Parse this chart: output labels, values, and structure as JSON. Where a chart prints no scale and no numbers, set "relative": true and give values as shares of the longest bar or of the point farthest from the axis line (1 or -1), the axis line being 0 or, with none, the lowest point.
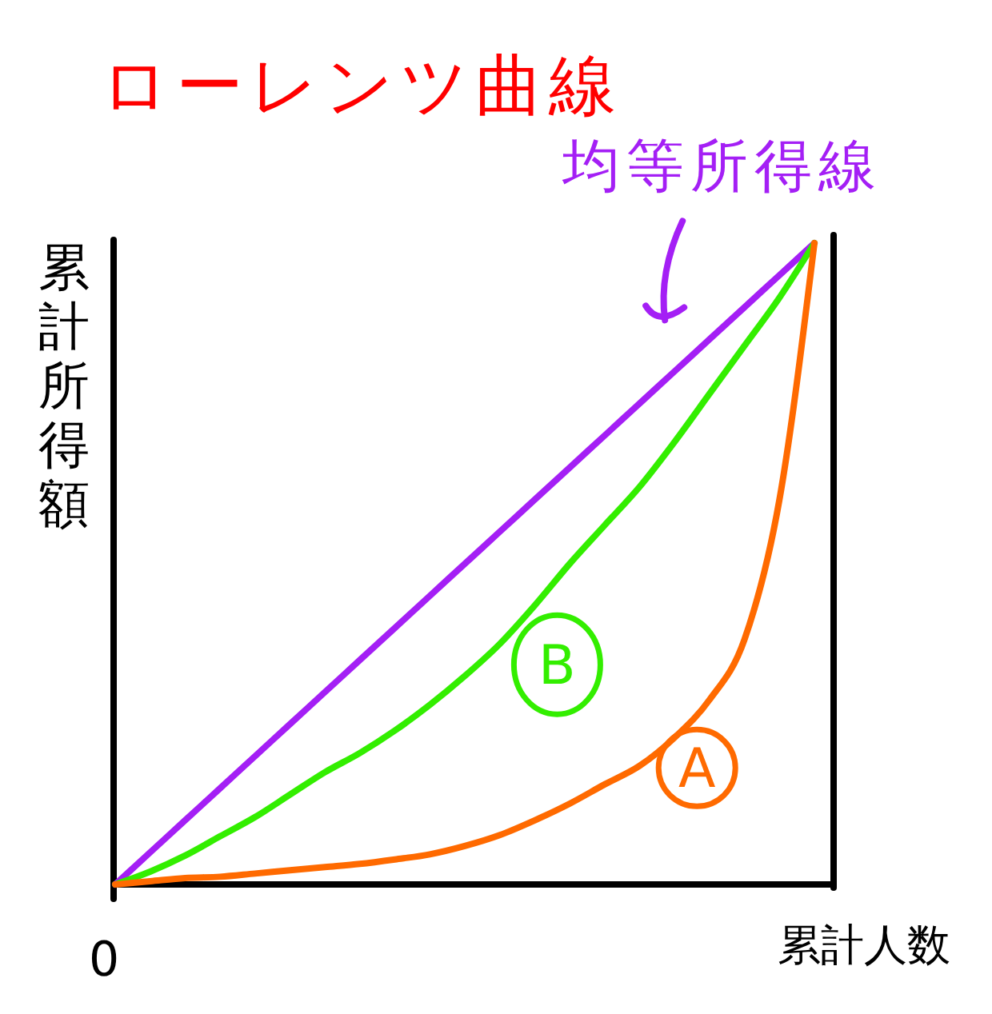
{
  "chart_data": {
    "type": "line",
    "title": "ローレンツ曲線",
    "xlabel": "累計人数",
    "ylabel": "累計所得額",
    "relative": true,
    "annotations": [
      "0"
    ],
    "categories": [
      null,
      null,
      null,
      null,
      null,
      null,
      null,
      null,
      null,
      null,
      null,
      null,
      null,
      null,
      null,
      null,
      null,
      null,
      null,
      null,
      null
    ],
    "series": [
      {
        "name": "均等所得線",
        "color": "#a41ff5",
        "values": [
          0,
          0.05,
          0.1,
          0.15,
          0.2,
          0.25,
          0.3,
          0.35,
          0.4,
          0.45,
          0.5,
          0.55,
          0.6,
          0.65,
          0.7,
          0.75,
          0.8,
          0.85,
          0.9,
          0.95,
          1
        ]
      },
      {
        "name": "B",
        "color": "#33ee00",
        "values": [
          0,
          0.02,
          0.045,
          0.075,
          0.105,
          0.14,
          0.175,
          0.205,
          0.24,
          0.28,
          0.325,
          0.375,
          0.435,
          0.5,
          0.56,
          0.62,
          0.69,
          0.765,
          0.84,
          0.915,
          1
        ]
      },
      {
        "name": "A",
        "color": "#ff6a00",
        "values": [
          0,
          0.005,
          0.01,
          0.012,
          0.017,
          0.022,
          0.027,
          0.032,
          0.039,
          0.047,
          0.06,
          0.077,
          0.1,
          0.126,
          0.156,
          0.185,
          0.229,
          0.288,
          0.382,
          0.6,
          1
        ]
      }
    ]
  }
}
